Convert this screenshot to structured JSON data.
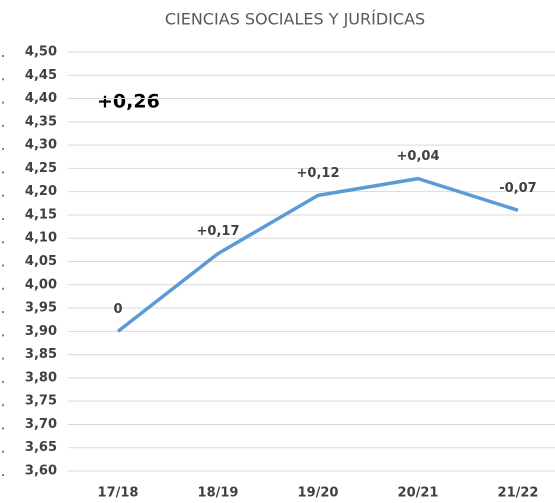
{
  "chart_data": {
    "type": "line",
    "title": "CIENCIAS SOCIALES Y JURÍDICAS",
    "categories": [
      "17/18",
      "18/19",
      "19/20",
      "20/21",
      "21/22"
    ],
    "series": [
      {
        "color": "#5b9bd5",
        "values": [
          3.9,
          4.067,
          4.192,
          4.228,
          4.16
        ]
      }
    ],
    "point_labels": [
      "0",
      "+0,17",
      "+0,12",
      "+0,04",
      "-0,07"
    ],
    "annotation": "+0,26",
    "ylim": [
      3.6,
      4.5
    ],
    "yticks": [
      {
        "value": 3.6,
        "label": "3,60"
      },
      {
        "value": 3.65,
        "label": "3,65"
      },
      {
        "value": 3.7,
        "label": "3,70"
      },
      {
        "value": 3.75,
        "label": "3,75"
      },
      {
        "value": 3.8,
        "label": "3,80"
      },
      {
        "value": 3.85,
        "label": "3,85"
      },
      {
        "value": 3.9,
        "label": "3,90"
      },
      {
        "value": 3.95,
        "label": "3,95"
      },
      {
        "value": 4.0,
        "label": "4,00"
      },
      {
        "value": 4.05,
        "label": "4,05"
      },
      {
        "value": 4.1,
        "label": "4,10"
      },
      {
        "value": 4.15,
        "label": "4,15"
      },
      {
        "value": 4.2,
        "label": "4,20"
      },
      {
        "value": 4.25,
        "label": "4,25"
      },
      {
        "value": 4.3,
        "label": "4,30"
      },
      {
        "value": 4.35,
        "label": "4,35"
      },
      {
        "value": 4.4,
        "label": "4,40"
      },
      {
        "value": 4.45,
        "label": "4,45"
      },
      {
        "value": 4.5,
        "label": "4,50"
      }
    ],
    "grid": true
  }
}
